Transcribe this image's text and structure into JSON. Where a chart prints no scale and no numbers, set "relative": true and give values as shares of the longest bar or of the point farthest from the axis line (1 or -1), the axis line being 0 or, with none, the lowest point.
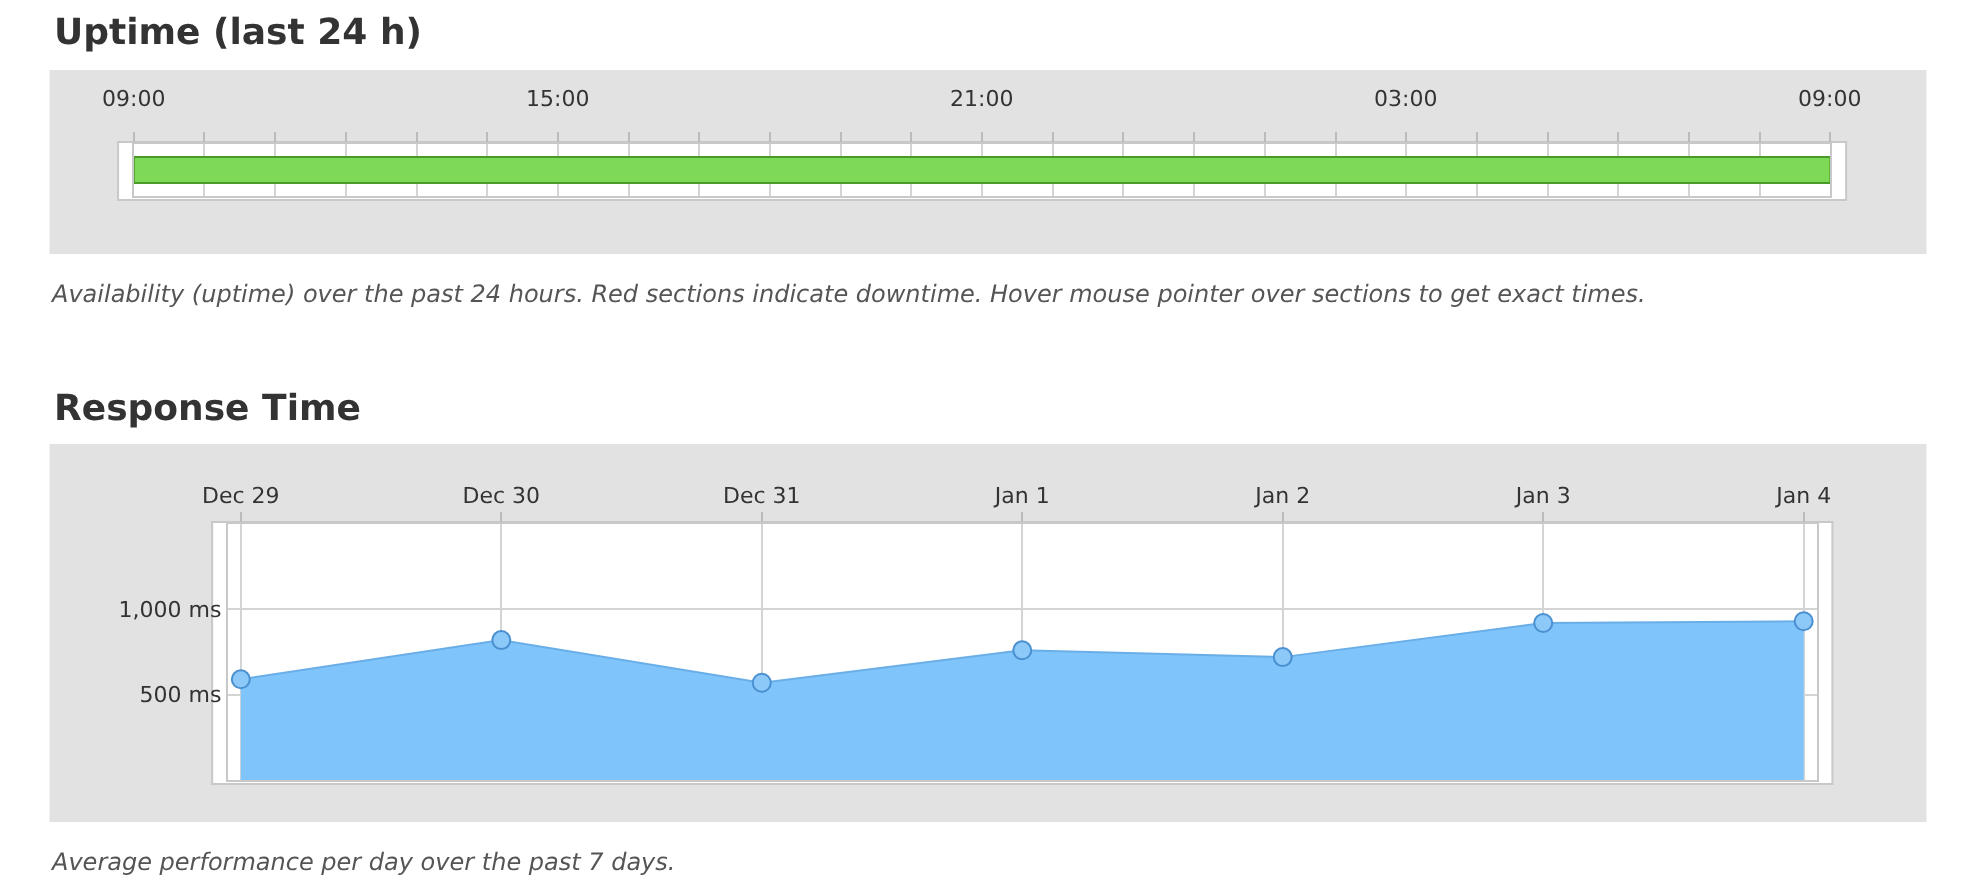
{
  "chart_data": [
    {
      "type": "bar",
      "title": "Uptime (last 24 h)",
      "orientation": "horizontal",
      "relative": true,
      "categories": [
        null
      ],
      "values": [
        1
      ],
      "color": "#7ed957",
      "grid": "x",
      "annotations": [
        "09:00",
        "15:00",
        "21:00",
        "03:00",
        "09:00",
        "Availability (uptime) over the past 24 hours. Red sections indicate downtime. Hover mouse pointer over sections to get exact times."
      ]
    },
    {
      "type": "area",
      "title": "Response Time",
      "categories": [
        "Dec 29",
        "Dec 30",
        "Dec 31",
        "Jan 1",
        "Jan 2",
        "Jan 3",
        "Jan 4"
      ],
      "values": [
        590,
        820,
        570,
        760,
        720,
        920,
        930
      ],
      "color": "#7fc4fb",
      "marker": "circle",
      "ylim": [
        0,
        1500
      ],
      "yticks": [
        {
          "value": 500,
          "label": "500 ms"
        },
        {
          "value": 1000,
          "label": "1,000 ms"
        }
      ],
      "grid": true,
      "annotations": [
        "Average performance per day over the past 7 days."
      ]
    }
  ]
}
